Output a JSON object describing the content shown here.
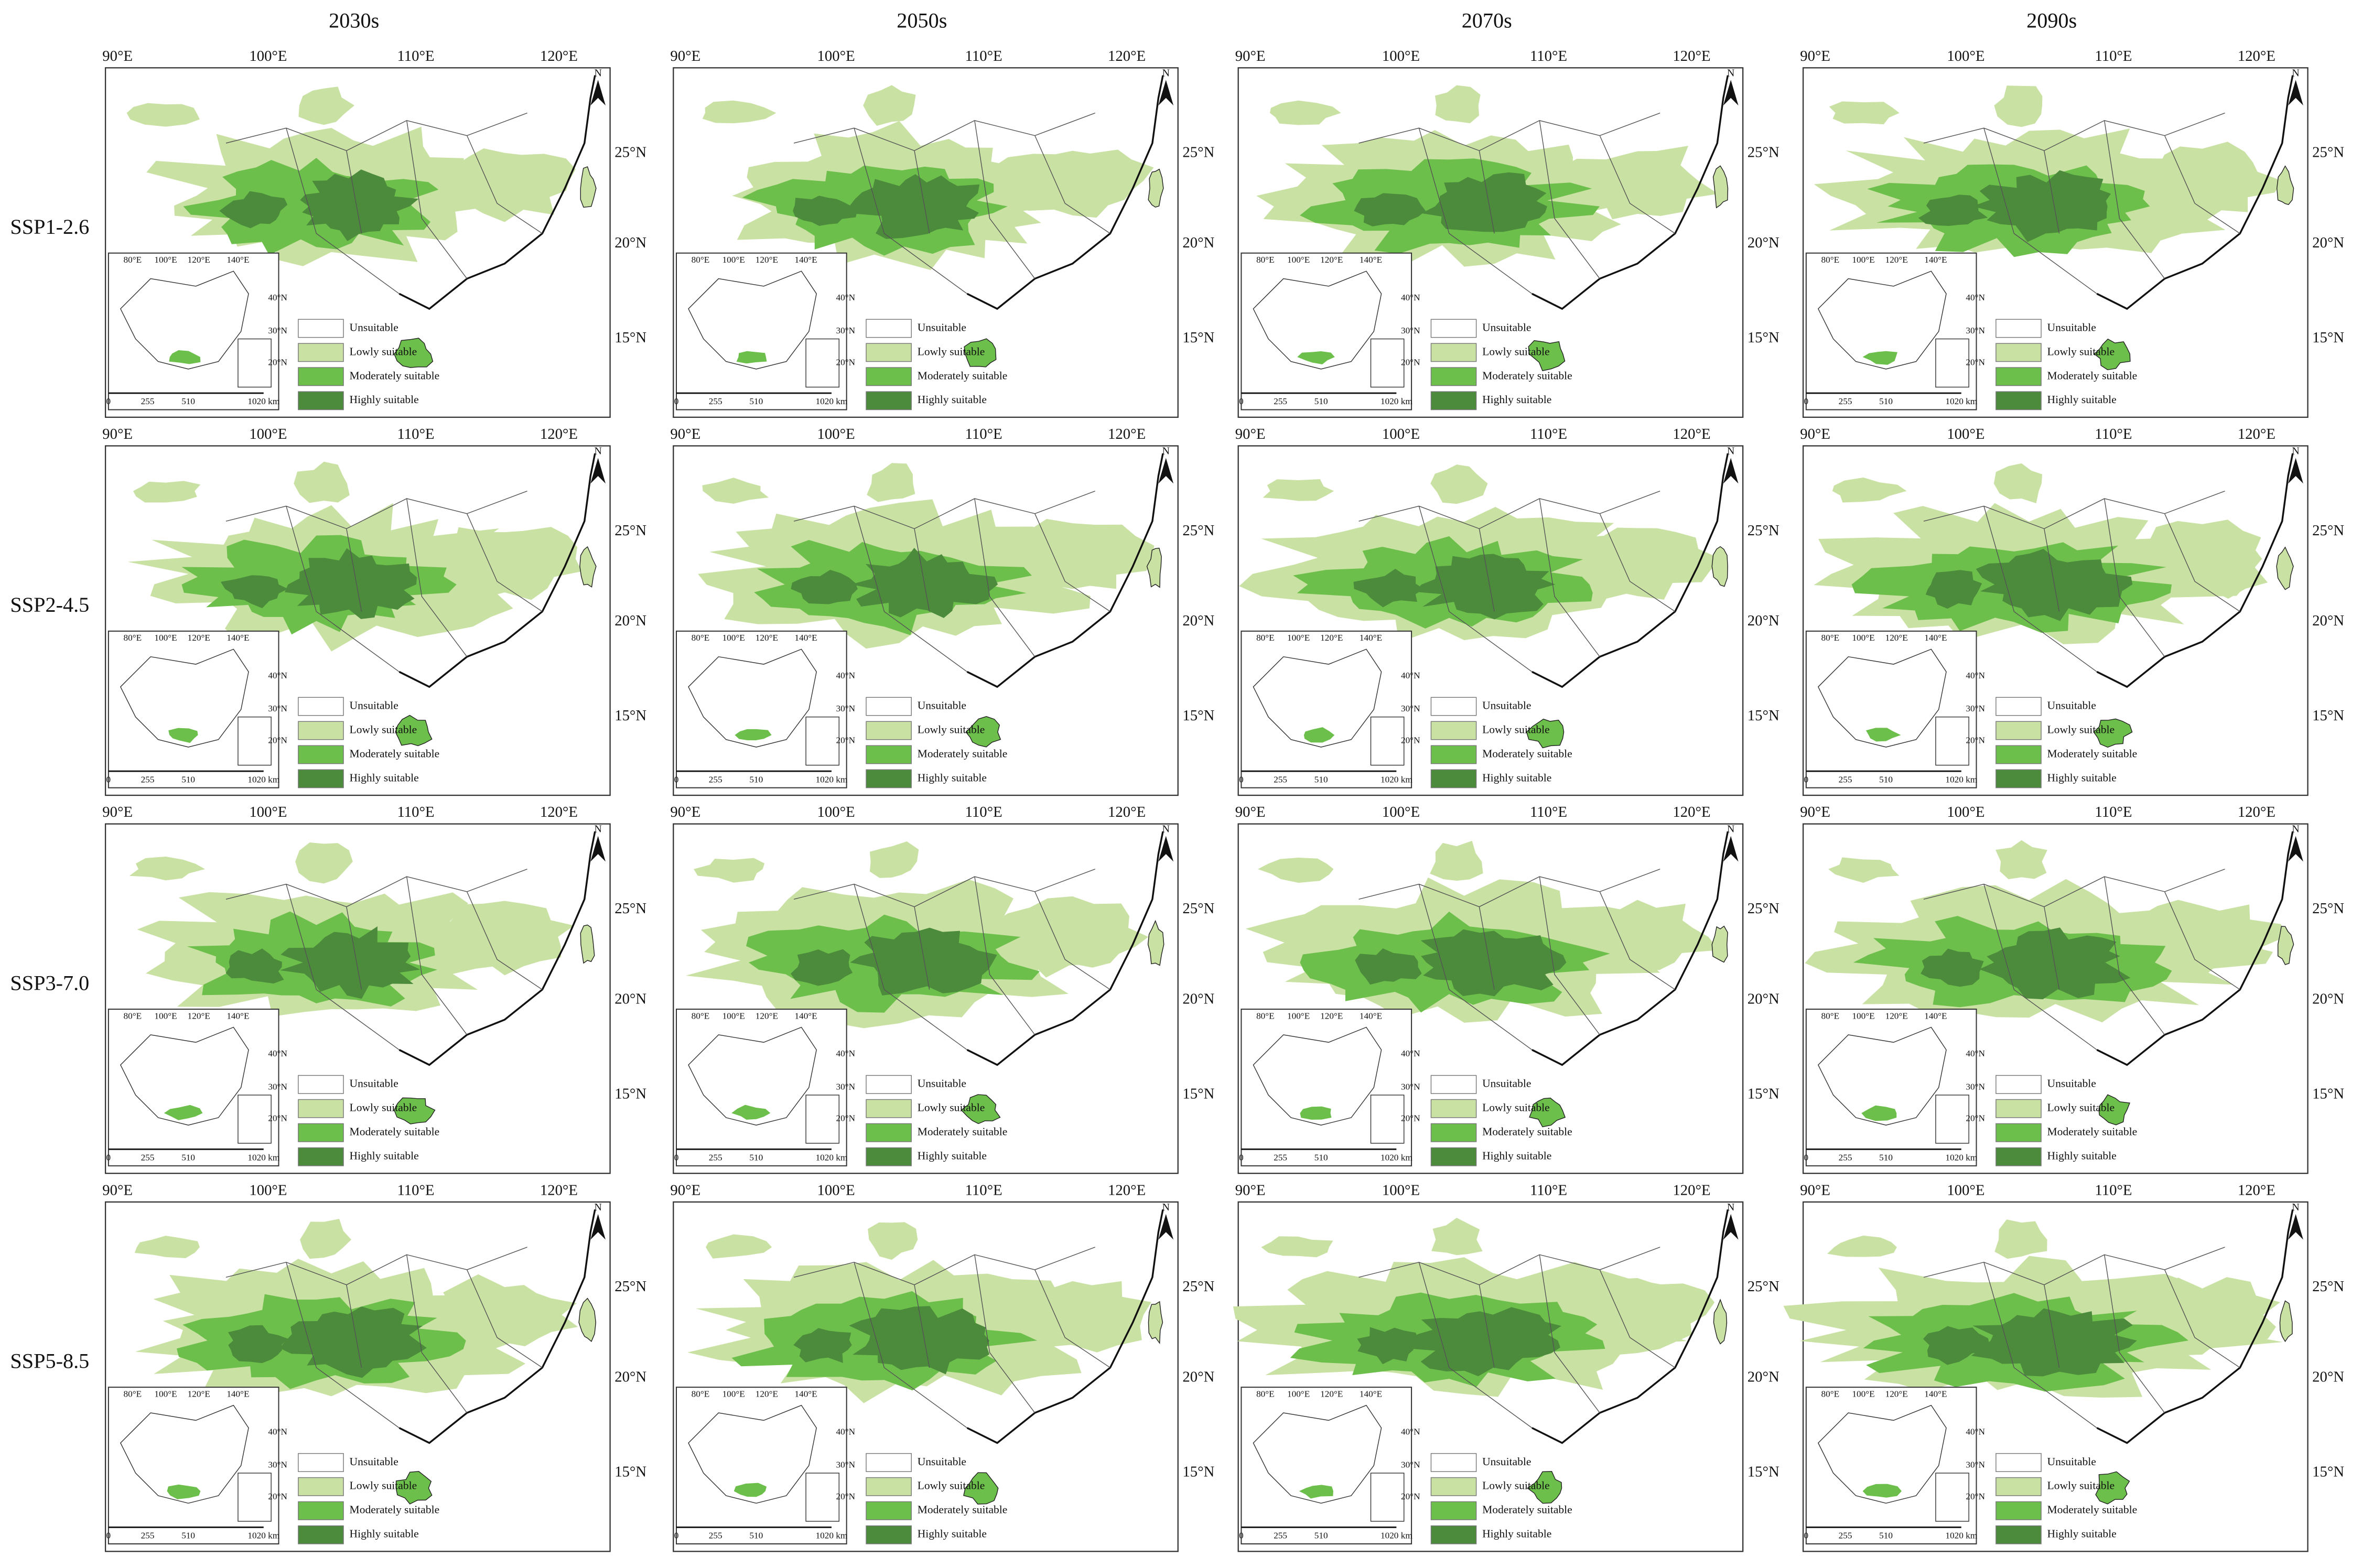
{
  "columns": [
    "2030s",
    "2050s",
    "2070s",
    "2090s"
  ],
  "rows": [
    "SSP1-2.6",
    "SSP2-4.5",
    "SSP3-7.0",
    "SSP5-8.5"
  ],
  "map": {
    "lon_labels": [
      "90°E",
      "100°E",
      "110°E",
      "120°E"
    ],
    "lat_labels": [
      "25°N",
      "20°N",
      "15°N"
    ],
    "north": "N",
    "inset": {
      "lon_labels": [
        "80°E",
        "100°E",
        "120°E",
        "140°E"
      ],
      "lat_labels": [
        "40°N",
        "30°N",
        "20°N"
      ],
      "scale": [
        "0",
        "255",
        "510",
        "1020 km"
      ]
    },
    "legend": [
      {
        "label": "Unsuitable",
        "color": "#ffffff"
      },
      {
        "label": "Lowly suitable",
        "color": "#c9e1a3"
      },
      {
        "label": "Moderately suitable",
        "color": "#6dbf4b"
      },
      {
        "label": "Highly suitable",
        "color": "#4b8b3b"
      }
    ]
  }
}
